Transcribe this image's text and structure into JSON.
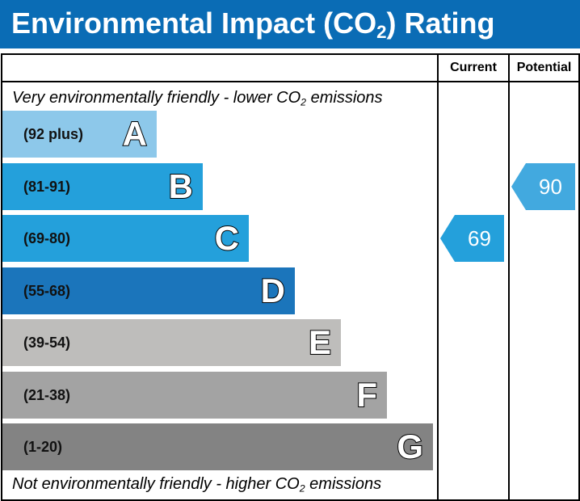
{
  "header": {
    "title_prefix": "Environmental Impact (CO",
    "title_sub": "2",
    "title_suffix": ") Rating"
  },
  "columns": {
    "current": "Current",
    "potential": "Potential"
  },
  "captions": {
    "top_prefix": "Very environmentally friendly - lower CO",
    "top_sub": "2",
    "top_suffix": " emissions",
    "bottom_prefix": "Not environmentally friendly - higher CO",
    "bottom_sub": "2",
    "bottom_suffix": " emissions"
  },
  "colors": {
    "header": "#0a6cb5",
    "A": "#8dc8ea",
    "B": "#24a0db",
    "C": "#24a0db",
    "D": "#1b75bb",
    "E": "#bebdbb",
    "F": "#a3a3a3",
    "G": "#838383",
    "current_arrow": "#24a0db",
    "potential_arrow": "#42a9df"
  },
  "chart_data": {
    "type": "bar",
    "bands": [
      {
        "letter": "A",
        "range": "(92 plus)",
        "min": 92,
        "max": null
      },
      {
        "letter": "B",
        "range": "(81-91)",
        "min": 81,
        "max": 91
      },
      {
        "letter": "C",
        "range": "(69-80)",
        "min": 69,
        "max": 80
      },
      {
        "letter": "D",
        "range": "(55-68)",
        "min": 55,
        "max": 68
      },
      {
        "letter": "E",
        "range": "(39-54)",
        "min": 39,
        "max": 54
      },
      {
        "letter": "F",
        "range": "(21-38)",
        "min": 21,
        "max": 38
      },
      {
        "letter": "G",
        "range": "(1-20)",
        "min": 1,
        "max": 20
      }
    ],
    "current": {
      "value": 69,
      "band": "C"
    },
    "potential": {
      "value": 90,
      "band": "B"
    }
  }
}
